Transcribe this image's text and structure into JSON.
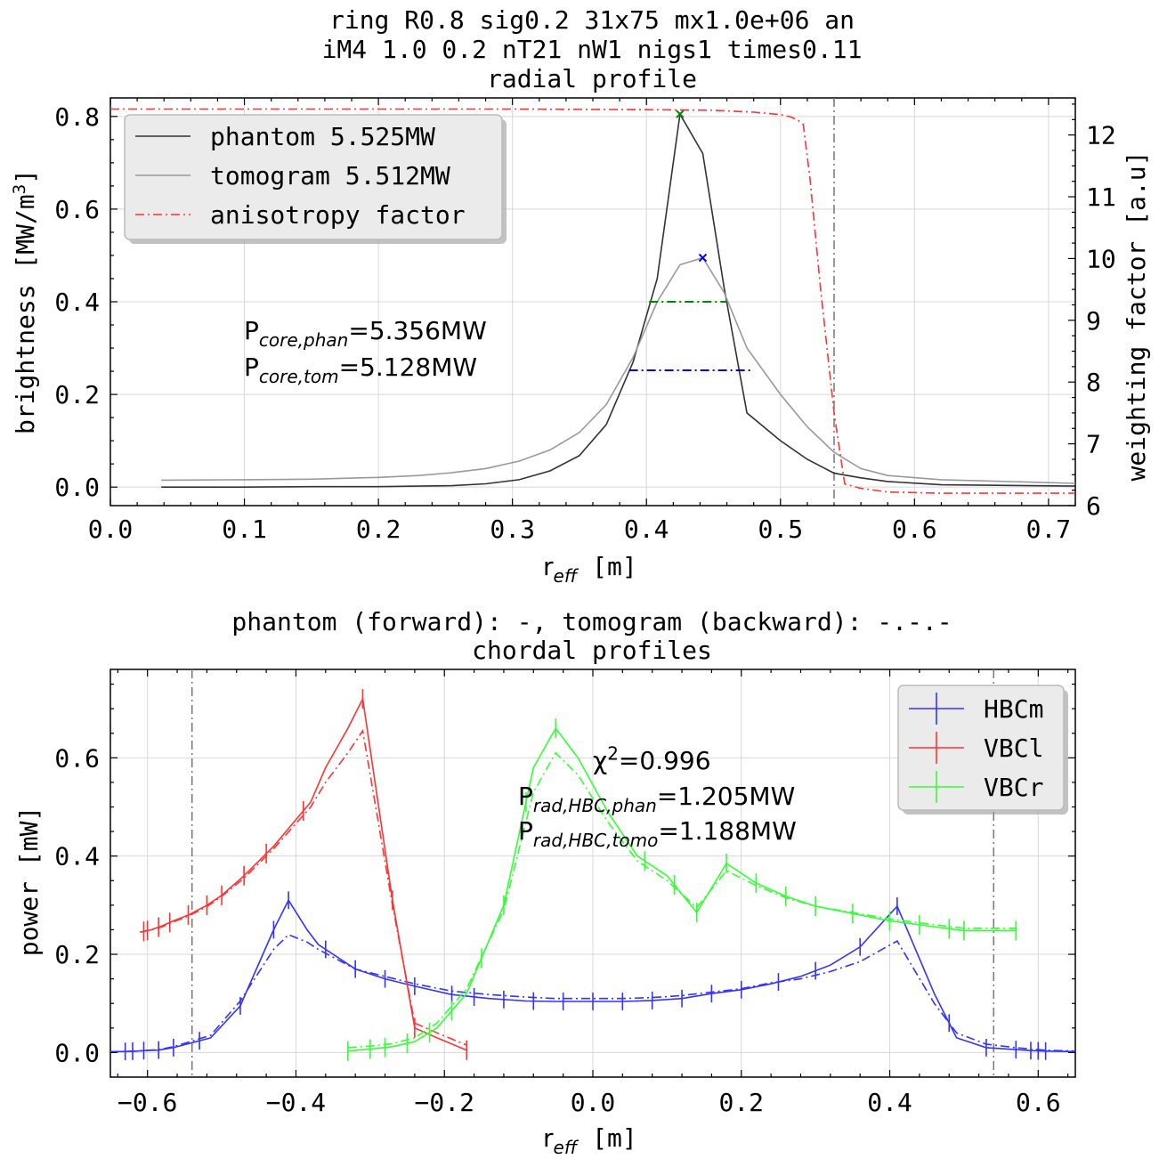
{
  "top_title": {
    "line1": "ring R0.8 sig0.2 31x75 mx1.0e+06 an",
    "line2": "iM4 1.0 0.2 nT21 nW1 nigs1 times0.11",
    "line3": "radial profile"
  },
  "bottom_title": {
    "line1": "phantom (forward): -,   tomogram (backward): -.-.-",
    "line2": "chordal profiles"
  },
  "colors": {
    "phantom": "#333333",
    "tomogram": "#999999",
    "anisotropy": "#ff3333",
    "HBCm": "#3333ff",
    "VBCl": "#ff3333",
    "VBCr": "#33ff33",
    "green_marker": "#008800",
    "blue_marker": "#0000ff"
  },
  "chart_data": [
    {
      "type": "line",
      "xlabel": "r",
      "xlabel_sub": "eff",
      "xlabel_unit": " [m]",
      "ylabel": "brightness [MW/m",
      "ylabel_sup": "3",
      "ylabel_end": "]",
      "y2label": "weighting factor [a.u]",
      "xlim": [
        0.0,
        0.72
      ],
      "ylim": [
        -0.04,
        0.84
      ],
      "y2lim": [
        6.0,
        12.6
      ],
      "xticks": [
        "0.0",
        "0.1",
        "0.2",
        "0.3",
        "0.4",
        "0.5",
        "0.6",
        "0.7"
      ],
      "yticks": [
        "0.0",
        "0.2",
        "0.4",
        "0.6",
        "0.8"
      ],
      "y2ticks": [
        "6",
        "7",
        "8",
        "9",
        "10",
        "11",
        "12"
      ],
      "grid": true,
      "legend_position": "top-left",
      "legend": [
        "phantom 5.525MW",
        "tomogram 5.512MW",
        "anisotropy factor"
      ],
      "series": [
        {
          "name": "phantom 5.525MW",
          "x": [
            0.038,
            0.1,
            0.15,
            0.2,
            0.23,
            0.255,
            0.28,
            0.305,
            0.328,
            0.35,
            0.37,
            0.39,
            0.408,
            0.425,
            0.442,
            0.458,
            0.475,
            0.5,
            0.52,
            0.54,
            0.56,
            0.58,
            0.62,
            0.72
          ],
          "y": [
            0.0,
            0.0,
            0.001,
            0.001,
            0.002,
            0.003,
            0.007,
            0.016,
            0.035,
            0.068,
            0.135,
            0.27,
            0.45,
            0.805,
            0.72,
            0.43,
            0.16,
            0.1,
            0.06,
            0.03,
            0.02,
            0.012,
            0.005,
            0.002
          ]
        },
        {
          "name": "tomogram 5.512MW",
          "x": [
            0.038,
            0.1,
            0.15,
            0.2,
            0.23,
            0.255,
            0.28,
            0.305,
            0.328,
            0.35,
            0.37,
            0.39,
            0.408,
            0.425,
            0.442,
            0.458,
            0.475,
            0.5,
            0.52,
            0.54,
            0.56,
            0.58,
            0.62,
            0.72
          ],
          "y": [
            0.015,
            0.016,
            0.017,
            0.021,
            0.025,
            0.031,
            0.04,
            0.056,
            0.08,
            0.118,
            0.178,
            0.28,
            0.4,
            0.48,
            0.495,
            0.42,
            0.3,
            0.2,
            0.13,
            0.075,
            0.04,
            0.025,
            0.016,
            0.008
          ]
        },
        {
          "name": "anisotropy factor",
          "axis": "right",
          "x": [
            0.0,
            0.3,
            0.4,
            0.45,
            0.48,
            0.5,
            0.508,
            0.513,
            0.517,
            0.522,
            0.53,
            0.54,
            0.548,
            0.56,
            0.58,
            0.62,
            0.72
          ],
          "y": [
            12.42,
            12.42,
            12.41,
            12.4,
            12.37,
            12.33,
            12.29,
            12.24,
            12.17,
            11.3,
            9.5,
            7.5,
            6.35,
            6.28,
            6.22,
            6.2,
            6.2
          ]
        }
      ],
      "markers": [
        {
          "label": "phantom peak",
          "x": 0.425,
          "y": 0.805,
          "color": "green_marker",
          "shape": "x"
        },
        {
          "label": "tomogram peak",
          "x": 0.442,
          "y": 0.495,
          "color": "blue_marker",
          "shape": "x"
        }
      ],
      "fwhm_lines": [
        {
          "color": "green_marker",
          "x_start": 0.402,
          "x_end": 0.46,
          "y": 0.4
        },
        {
          "color": "blue_marker",
          "x_start": 0.387,
          "x_end": 0.478,
          "y": 0.252
        }
      ],
      "vline_x": 0.54,
      "annotations": [
        {
          "pre": "P",
          "sub": "core,phan",
          "post": "=5.356MW"
        },
        {
          "pre": "P",
          "sub": "core,tom",
          "post": "=5.128MW"
        }
      ]
    },
    {
      "type": "line",
      "xlabel": "r",
      "xlabel_sub": "eff",
      "xlabel_unit": " [m]",
      "ylabel": "power [mW]",
      "xlim": [
        -0.65,
        0.65
      ],
      "ylim": [
        -0.05,
        0.78
      ],
      "xticks": [
        "−0.6",
        "−0.4",
        "−0.2",
        "0.0",
        "0.2",
        "0.4",
        "0.6"
      ],
      "yticks": [
        "0.0",
        "0.2",
        "0.4",
        "0.6"
      ],
      "grid": true,
      "legend_position": "top-right",
      "legend": [
        "HBCm",
        "VBCl",
        "VBCr"
      ],
      "vlines_x": [
        -0.54,
        0.54
      ],
      "series": [
        {
          "name": "HBCm",
          "x": [
            -0.65,
            -0.635,
            -0.615,
            -0.605,
            -0.585,
            -0.565,
            -0.515,
            -0.475,
            -0.43,
            -0.41,
            -0.385,
            -0.37,
            -0.32,
            -0.28,
            -0.24,
            -0.19,
            -0.14,
            -0.09,
            -0.05,
            0.0,
            0.04,
            0.08,
            0.12,
            0.16,
            0.2,
            0.24,
            0.28,
            0.32,
            0.36,
            0.41,
            0.46,
            0.49,
            0.53,
            0.57,
            0.59,
            0.61,
            0.65
          ],
          "phantom": [
            0.002,
            0.002,
            0.003,
            0.004,
            0.005,
            0.01,
            0.03,
            0.095,
            0.25,
            0.31,
            0.25,
            0.22,
            0.17,
            0.15,
            0.135,
            0.118,
            0.11,
            0.105,
            0.104,
            0.104,
            0.104,
            0.106,
            0.11,
            0.12,
            0.128,
            0.14,
            0.155,
            0.178,
            0.215,
            0.298,
            0.12,
            0.03,
            0.01,
            0.006,
            0.004,
            0.003,
            0.002
          ],
          "tomogram": [
            0.002,
            0.002,
            0.003,
            0.004,
            0.006,
            0.012,
            0.035,
            0.105,
            0.21,
            0.24,
            0.225,
            0.21,
            0.17,
            0.155,
            0.14,
            0.125,
            0.118,
            0.113,
            0.11,
            0.11,
            0.11,
            0.112,
            0.116,
            0.123,
            0.13,
            0.142,
            0.15,
            0.165,
            0.185,
            0.227,
            0.1,
            0.04,
            0.017,
            0.01,
            0.007,
            0.005,
            0.003
          ],
          "errors_x": [
            -0.63,
            -0.62,
            -0.605,
            -0.585,
            -0.565,
            -0.53,
            -0.475,
            -0.43,
            -0.41,
            -0.36,
            -0.32,
            -0.28,
            -0.24,
            -0.19,
            -0.16,
            -0.12,
            -0.08,
            -0.04,
            0.0,
            0.04,
            0.08,
            0.12,
            0.16,
            0.2,
            0.25,
            0.3,
            0.36,
            0.41,
            0.48,
            0.53,
            0.57,
            0.59,
            0.6,
            0.61
          ],
          "error": 0.018
        },
        {
          "name": "VBCl",
          "x": [
            -0.61,
            -0.595,
            -0.58,
            -0.565,
            -0.545,
            -0.52,
            -0.5,
            -0.47,
            -0.43,
            -0.38,
            -0.36,
            -0.33,
            -0.31,
            -0.27,
            -0.24,
            -0.21,
            -0.17
          ],
          "phantom": [
            0.245,
            0.25,
            0.258,
            0.268,
            0.28,
            0.3,
            0.32,
            0.36,
            0.42,
            0.51,
            0.58,
            0.66,
            0.72,
            0.31,
            0.05,
            0.03,
            0.005
          ],
          "tomogram": [
            0.245,
            0.25,
            0.256,
            0.266,
            0.278,
            0.297,
            0.318,
            0.355,
            0.415,
            0.5,
            0.55,
            0.61,
            0.655,
            0.3,
            0.06,
            0.04,
            0.015
          ],
          "errors_x": [
            -0.605,
            -0.6,
            -0.585,
            -0.57,
            -0.545,
            -0.52,
            -0.5,
            -0.47,
            -0.44,
            -0.39,
            -0.31,
            -0.27,
            -0.24,
            -0.17
          ],
          "error": 0.02
        },
        {
          "name": "VBCr",
          "x": [
            -0.33,
            -0.3,
            -0.27,
            -0.24,
            -0.21,
            -0.17,
            -0.12,
            -0.08,
            -0.05,
            -0.02,
            0.02,
            0.06,
            0.1,
            0.14,
            0.18,
            0.22,
            0.26,
            0.3,
            0.35,
            0.4,
            0.45,
            0.5,
            0.57
          ],
          "phantom": [
            0.003,
            0.007,
            0.012,
            0.022,
            0.05,
            0.12,
            0.3,
            0.58,
            0.66,
            0.6,
            0.49,
            0.4,
            0.36,
            0.285,
            0.385,
            0.345,
            0.318,
            0.298,
            0.283,
            0.268,
            0.258,
            0.248,
            0.248
          ],
          "tomogram": [
            0.01,
            0.013,
            0.018,
            0.03,
            0.06,
            0.13,
            0.29,
            0.53,
            0.61,
            0.565,
            0.47,
            0.39,
            0.35,
            0.295,
            0.37,
            0.34,
            0.315,
            0.298,
            0.285,
            0.272,
            0.262,
            0.253,
            0.253
          ],
          "errors_x": [
            -0.33,
            -0.3,
            -0.28,
            -0.25,
            -0.22,
            -0.19,
            -0.15,
            -0.12,
            -0.09,
            -0.05,
            0.07,
            0.11,
            0.14,
            0.18,
            0.22,
            0.26,
            0.3,
            0.35,
            0.4,
            0.44,
            0.48,
            0.5,
            0.57
          ],
          "error": 0.02
        }
      ],
      "annotations": {
        "chi": {
          "pre": "χ",
          "sup": "2",
          "post": "=0.996"
        },
        "p1": {
          "pre": "P",
          "sub": "rad,HBC,phan",
          "post": "=1.205MW"
        },
        "p2": {
          "pre": "P",
          "sub": "rad,HBC,tomo",
          "post": "=1.188MW"
        }
      }
    }
  ]
}
